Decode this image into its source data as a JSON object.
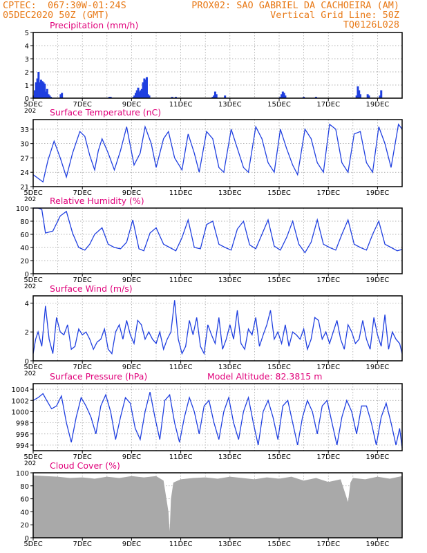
{
  "header": {
    "line1_left": "CPTEC:  067:30W-01:24S",
    "line1_right": "PROX02: SAO GABRIEL DA CACHOEIRA (AM)",
    "line2_left": "05DEC2020 50Z (GMT)",
    "line2_right": "Vertical Grid Line: 50Z",
    "line3_right": "TQ0126L028"
  },
  "x_tick_labels": [
    "5DEC",
    "7DEC",
    "9DEC",
    "11DEC",
    "13DEC",
    "15DEC",
    "17DEC",
    "19DEC"
  ],
  "x_partial_label": "202",
  "colors": {
    "title": "#e0007a",
    "header": "#e87a18",
    "line": "#1f3fe0",
    "bar": "#1f3fe0",
    "cloud": "#a9a9a9",
    "grid": "#9a9a9a"
  },
  "chart_data": [
    {
      "type": "bar",
      "title": "Precipitation (mm/h)",
      "ylim": [
        0,
        5
      ],
      "y_ticks": [
        "0",
        "1",
        "2",
        "3",
        "4",
        "5"
      ],
      "x_range_days": [
        5,
        20
      ],
      "series": [
        {
          "x": [
            5.02,
            5.07,
            5.12,
            5.17,
            5.22,
            5.27,
            5.32,
            5.37,
            5.42,
            5.47,
            5.52,
            5.57,
            5.62,
            5.67,
            5.72,
            6.12,
            6.17,
            8.1,
            8.15,
            9.08,
            9.12,
            9.17,
            9.22,
            9.27,
            9.32,
            9.37,
            9.42,
            9.47,
            9.52,
            9.57,
            9.62,
            9.67,
            9.72,
            10.65,
            10.8,
            12.3,
            12.35,
            12.4,
            12.45,
            12.8,
            15.05,
            15.1,
            15.15,
            15.2,
            15.25,
            16.0,
            16.5,
            18.15,
            18.2,
            18.25,
            18.3,
            18.6,
            18.65,
            19.1,
            19.15
          ],
          "values": [
            0.2,
            0.6,
            1.2,
            1.5,
            2.0,
            1.2,
            1.4,
            1.3,
            1.2,
            1.1,
            0.5,
            0.7,
            0.3,
            0.2,
            0.1,
            0.3,
            0.4,
            0.1,
            0.1,
            0.1,
            0.2,
            0.4,
            0.6,
            0.8,
            0.5,
            0.6,
            0.7,
            1.2,
            1.5,
            1.4,
            1.6,
            0.3,
            0.2,
            0.1,
            0.1,
            0.1,
            0.2,
            0.5,
            0.3,
            0.2,
            0.1,
            0.3,
            0.5,
            0.4,
            0.2,
            0.1,
            0.1,
            0.2,
            0.9,
            0.6,
            0.3,
            0.3,
            0.2,
            0.2,
            0.6
          ]
        }
      ]
    },
    {
      "type": "line",
      "title": "Surface Temperature (nC)",
      "ylim": [
        21,
        35
      ],
      "y_ticks": [
        "21",
        "24",
        "27",
        "30",
        "33"
      ],
      "x_range_days": [
        5,
        20
      ],
      "series": [
        {
          "x": [
            5.0,
            5.4,
            5.6,
            5.85,
            6.1,
            6.35,
            6.6,
            6.9,
            7.1,
            7.3,
            7.5,
            7.65,
            7.8,
            8.05,
            8.3,
            8.55,
            8.8,
            9.1,
            9.35,
            9.55,
            9.8,
            10.0,
            10.3,
            10.5,
            10.75,
            11.05,
            11.3,
            11.55,
            11.75,
            12.05,
            12.3,
            12.55,
            12.75,
            13.05,
            13.3,
            13.55,
            13.75,
            14.05,
            14.3,
            14.55,
            14.8,
            15.05,
            15.3,
            15.55,
            15.75,
            16.05,
            16.3,
            16.55,
            16.8,
            17.05,
            17.3,
            17.55,
            17.8,
            18.05,
            18.3,
            18.55,
            18.8,
            19.05,
            19.3,
            19.55,
            19.85,
            20.0
          ],
          "values": [
            23.5,
            22.0,
            26.5,
            30.5,
            27.0,
            23.0,
            28.0,
            32.5,
            31.5,
            27.5,
            24.5,
            28.5,
            31.0,
            28.0,
            24.5,
            28.5,
            33.5,
            25.5,
            28.0,
            33.5,
            30.0,
            25.0,
            31.0,
            32.5,
            27.0,
            24.5,
            32.0,
            28.0,
            24.0,
            32.5,
            31.0,
            25.0,
            24.0,
            33.0,
            29.0,
            25.0,
            24.0,
            33.5,
            31.0,
            26.0,
            24.0,
            33.0,
            29.0,
            25.5,
            23.5,
            33.0,
            31.0,
            26.0,
            24.0,
            34.0,
            33.0,
            26.0,
            24.0,
            32.0,
            32.5,
            26.0,
            24.0,
            33.5,
            30.0,
            25.0,
            34.0,
            33.0
          ]
        }
      ]
    },
    {
      "type": "line",
      "title": "Relative Humidity (%)",
      "ylim": [
        0,
        100
      ],
      "y_ticks": [
        "0",
        "20",
        "40",
        "60",
        "80",
        "100"
      ],
      "x_range_days": [
        5,
        20
      ],
      "series": [
        {
          "x": [
            5.0,
            5.2,
            5.35,
            5.5,
            5.8,
            6.1,
            6.35,
            6.6,
            6.85,
            7.1,
            7.3,
            7.5,
            7.8,
            8.05,
            8.3,
            8.55,
            8.8,
            9.05,
            9.3,
            9.5,
            9.75,
            10.0,
            10.3,
            10.55,
            10.8,
            11.05,
            11.3,
            11.55,
            11.8,
            12.05,
            12.3,
            12.55,
            12.8,
            13.05,
            13.3,
            13.55,
            13.8,
            14.05,
            14.3,
            14.55,
            14.8,
            15.05,
            15.3,
            15.55,
            15.8,
            16.05,
            16.3,
            16.55,
            16.8,
            17.05,
            17.3,
            17.55,
            17.8,
            18.05,
            18.3,
            18.55,
            18.8,
            19.05,
            19.3,
            19.55,
            19.8,
            20.0
          ],
          "values": [
            100,
            100,
            98,
            62,
            65,
            88,
            95,
            62,
            40,
            36,
            45,
            60,
            70,
            45,
            40,
            38,
            48,
            82,
            38,
            35,
            62,
            70,
            45,
            40,
            35,
            55,
            82,
            40,
            38,
            75,
            80,
            45,
            40,
            36,
            68,
            80,
            44,
            38,
            60,
            82,
            42,
            36,
            55,
            80,
            45,
            32,
            48,
            82,
            45,
            40,
            36,
            60,
            82,
            45,
            40,
            36,
            60,
            80,
            45,
            40,
            35,
            37
          ]
        }
      ]
    },
    {
      "type": "line",
      "title": "Surface Wind (m/s)",
      "ylim": [
        0,
        4.5
      ],
      "y_ticks": [
        "0",
        "2",
        "4"
      ],
      "x_range_days": [
        5,
        20
      ],
      "series": [
        {
          "x": [
            5.0,
            5.1,
            5.2,
            5.35,
            5.5,
            5.65,
            5.8,
            5.95,
            6.1,
            6.25,
            6.4,
            6.55,
            6.7,
            6.85,
            7.0,
            7.15,
            7.3,
            7.45,
            7.6,
            7.75,
            7.9,
            8.05,
            8.2,
            8.35,
            8.5,
            8.65,
            8.8,
            8.95,
            9.1,
            9.25,
            9.4,
            9.55,
            9.7,
            9.85,
            10.0,
            10.15,
            10.3,
            10.45,
            10.6,
            10.75,
            10.9,
            11.05,
            11.2,
            11.35,
            11.5,
            11.65,
            11.8,
            11.95,
            12.1,
            12.25,
            12.4,
            12.55,
            12.7,
            12.85,
            13.0,
            13.15,
            13.3,
            13.45,
            13.6,
            13.75,
            13.9,
            14.05,
            14.2,
            14.35,
            14.5,
            14.65,
            14.8,
            14.95,
            15.1,
            15.25,
            15.4,
            15.55,
            15.7,
            15.85,
            16.0,
            16.15,
            16.3,
            16.45,
            16.6,
            16.75,
            16.9,
            17.05,
            17.2,
            17.35,
            17.5,
            17.65,
            17.8,
            17.95,
            18.1,
            18.25,
            18.4,
            18.55,
            18.7,
            18.85,
            19.0,
            19.15,
            19.3,
            19.45,
            19.6,
            19.75,
            19.9,
            20.0
          ],
          "values": [
            0.5,
            1.5,
            2.0,
            1.0,
            3.8,
            1.5,
            0.5,
            3.0,
            2.0,
            1.8,
            2.5,
            0.8,
            1.0,
            2.2,
            1.8,
            2.0,
            1.5,
            0.8,
            1.3,
            1.5,
            2.2,
            0.8,
            0.5,
            2.0,
            2.5,
            1.5,
            2.8,
            1.8,
            1.2,
            2.8,
            2.5,
            1.5,
            2.0,
            1.5,
            1.2,
            2.0,
            0.8,
            1.5,
            2.0,
            4.2,
            1.5,
            0.5,
            1.0,
            2.8,
            1.8,
            3.0,
            1.0,
            0.5,
            2.5,
            1.8,
            1.2,
            3.0,
            0.8,
            1.5,
            2.5,
            1.5,
            3.5,
            1.2,
            0.8,
            2.2,
            1.8,
            3.0,
            1.0,
            1.8,
            2.5,
            3.5,
            1.5,
            2.0,
            1.2,
            2.5,
            1.0,
            2.0,
            1.8,
            1.5,
            2.2,
            0.8,
            1.5,
            3.0,
            2.8,
            1.5,
            2.0,
            1.2,
            2.0,
            2.8,
            1.5,
            0.8,
            2.5,
            2.0,
            1.2,
            1.5,
            2.8,
            1.5,
            0.8,
            3.0,
            1.8,
            1.0,
            3.2,
            0.8,
            2.0,
            1.5,
            1.2,
            0.5
          ]
        }
      ]
    },
    {
      "type": "line",
      "title": "Surface Pressure (hPa)",
      "annotation": "Model Altitude: 82.3815  m",
      "ylim": [
        993,
        1005
      ],
      "y_ticks": [
        "994",
        "996",
        "998",
        "1000",
        "1002",
        "1004"
      ],
      "x_range_days": [
        5,
        20
      ],
      "series": [
        {
          "x": [
            5.0,
            5.2,
            5.4,
            5.55,
            5.75,
            5.95,
            6.15,
            6.35,
            6.55,
            6.75,
            6.95,
            7.15,
            7.35,
            7.55,
            7.75,
            7.95,
            8.15,
            8.35,
            8.55,
            8.75,
            8.95,
            9.15,
            9.35,
            9.55,
            9.75,
            9.95,
            10.15,
            10.35,
            10.55,
            10.75,
            10.95,
            11.15,
            11.35,
            11.55,
            11.75,
            11.95,
            12.15,
            12.35,
            12.55,
            12.75,
            12.95,
            13.15,
            13.35,
            13.55,
            13.75,
            13.95,
            14.15,
            14.35,
            14.55,
            14.75,
            14.95,
            15.15,
            15.35,
            15.55,
            15.75,
            15.95,
            16.15,
            16.35,
            16.55,
            16.75,
            16.95,
            17.15,
            17.35,
            17.55,
            17.75,
            17.95,
            18.15,
            18.35,
            18.55,
            18.75,
            18.95,
            19.15,
            19.35,
            19.55,
            19.75,
            19.9,
            20.0
          ],
          "values": [
            1002,
            1002.5,
            1003.2,
            1002,
            1000.5,
            1001,
            1002.8,
            998,
            994.5,
            999,
            1002.5,
            1001,
            999,
            996,
            1001,
            1003,
            1000,
            995,
            999,
            1002.5,
            1001.5,
            997,
            995,
            1000,
            1003.5,
            999,
            995,
            1002,
            1003,
            998,
            994.5,
            999,
            1002.5,
            1000,
            996,
            1001,
            1002,
            998,
            995,
            1000,
            1002.5,
            998,
            995,
            1000,
            1002.5,
            998,
            994,
            1000,
            1002,
            999,
            995,
            1001,
            1002,
            998,
            994,
            999,
            1002,
            1000,
            996,
            1001,
            1002,
            998,
            994,
            999,
            1002,
            1000,
            996,
            1001,
            1001,
            998,
            994,
            999,
            1001.5,
            998,
            994,
            997,
            993.5
          ]
        }
      ]
    },
    {
      "type": "area",
      "title": "Cloud Cover (%)",
      "ylim": [
        0,
        100
      ],
      "y_ticks": [
        "0",
        "20",
        "40",
        "60",
        "80",
        "100"
      ],
      "x_range_days": [
        5,
        20
      ],
      "series": [
        {
          "x": [
            5.0,
            5.5,
            6.0,
            6.5,
            7.0,
            7.5,
            8.0,
            8.5,
            9.0,
            9.5,
            10.0,
            10.3,
            10.5,
            10.55,
            10.6,
            10.7,
            11.0,
            11.5,
            12.0,
            12.5,
            13.0,
            13.5,
            14.0,
            14.5,
            15.0,
            15.5,
            16.0,
            16.5,
            17.0,
            17.5,
            17.8,
            17.9,
            18.0,
            18.5,
            19.0,
            19.5,
            20.0
          ],
          "values": [
            96,
            95,
            94,
            92,
            93,
            91,
            94,
            92,
            95,
            93,
            95,
            88,
            40,
            10,
            60,
            85,
            90,
            92,
            93,
            91,
            94,
            92,
            90,
            93,
            91,
            94,
            88,
            92,
            86,
            90,
            55,
            85,
            92,
            90,
            94,
            91,
            95
          ]
        }
      ]
    }
  ]
}
